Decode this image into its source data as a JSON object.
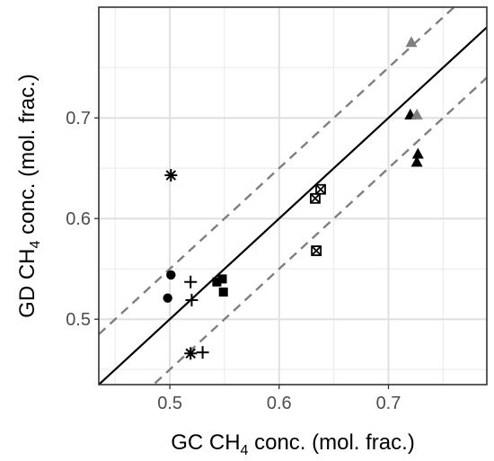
{
  "chart_data": {
    "type": "scatter",
    "xlabel": {
      "prefix": "GC CH",
      "sub": "4",
      "suffix": " conc. (mol. frac.)"
    },
    "ylabel": {
      "prefix": "GD CH",
      "sub": "4",
      "suffix": " conc. (mol. frac.)"
    },
    "xlim": [
      0.435,
      0.79
    ],
    "ylim": [
      0.435,
      0.81
    ],
    "xticks": [
      0.5,
      0.6,
      0.7
    ],
    "yticks": [
      0.5,
      0.6,
      0.7
    ],
    "xtick_labels": [
      "0.5",
      "0.6",
      "0.7"
    ],
    "ytick_labels": [
      "0.5",
      "0.6",
      "0.7"
    ],
    "grid": true,
    "reference_lines": [
      {
        "name": "1:1 line",
        "intercept": 0,
        "slope": 1,
        "style": "solid",
        "color": "#000000"
      },
      {
        "name": "upper bound",
        "intercept": 0.05,
        "slope": 1,
        "style": "dashed",
        "color": "#7f7f7f"
      },
      {
        "name": "lower bound",
        "intercept": -0.05,
        "slope": 1,
        "style": "dashed",
        "color": "#7f7f7f"
      }
    ],
    "series": [
      {
        "marker": "asterisk",
        "color": "#000000",
        "points": [
          [
            0.501,
            0.643
          ],
          [
            0.519,
            0.466
          ]
        ]
      },
      {
        "marker": "circle",
        "color": "#000000",
        "points": [
          [
            0.501,
            0.544
          ],
          [
            0.498,
            0.521
          ]
        ]
      },
      {
        "marker": "plus",
        "color": "#000000",
        "points": [
          [
            0.519,
            0.537
          ],
          [
            0.52,
            0.519
          ],
          [
            0.53,
            0.467
          ]
        ]
      },
      {
        "marker": "square",
        "color": "#000000",
        "points": [
          [
            0.543,
            0.537
          ],
          [
            0.548,
            0.54
          ],
          [
            0.549,
            0.527
          ]
        ]
      },
      {
        "marker": "boxed-x",
        "color": "#000000",
        "points": [
          [
            0.638,
            0.629
          ],
          [
            0.633,
            0.62
          ],
          [
            0.634,
            0.568
          ]
        ]
      },
      {
        "marker": "triangle",
        "color": "#000000",
        "points": [
          [
            0.72,
            0.703
          ],
          [
            0.727,
            0.664
          ],
          [
            0.726,
            0.656
          ]
        ]
      },
      {
        "marker": "triangle",
        "color": "#7f7f7f",
        "points": [
          [
            0.721,
            0.775
          ],
          [
            0.726,
            0.703
          ]
        ]
      }
    ]
  }
}
